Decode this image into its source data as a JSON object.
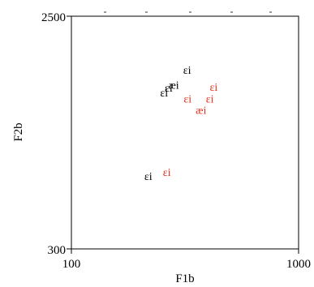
{
  "chart_data": {
    "type": "scatter",
    "xlabel": "F1b",
    "ylabel": "F2b",
    "xlim": [
      100,
      1000
    ],
    "ylim": [
      300,
      2500
    ],
    "x_scale": "log",
    "y_scale": "log",
    "x_tick_labels": [
      "100",
      "1000"
    ],
    "y_tick_labels": [
      "300",
      "2500"
    ],
    "grid": false,
    "series": [
      {
        "color": "#000000",
        "points": [
          {
            "label": "ɛi",
            "x": 323,
            "y": 1538
          },
          {
            "label": "æi",
            "x": 282,
            "y": 1337
          },
          {
            "label": "ɛi",
            "x": 268,
            "y": 1307
          },
          {
            "label": "ɛi",
            "x": 256,
            "y": 1248
          },
          {
            "label": "ɛi",
            "x": 218,
            "y": 584
          }
        ]
      },
      {
        "color": "#e8311e",
        "points": [
          {
            "label": "ɛi",
            "x": 423,
            "y": 1316
          },
          {
            "label": "ɛi",
            "x": 325,
            "y": 1183
          },
          {
            "label": "ɛi",
            "x": 407,
            "y": 1179
          },
          {
            "label": "æi",
            "x": 372,
            "y": 1066
          },
          {
            "label": "ɛi",
            "x": 263,
            "y": 605
          }
        ]
      }
    ]
  }
}
